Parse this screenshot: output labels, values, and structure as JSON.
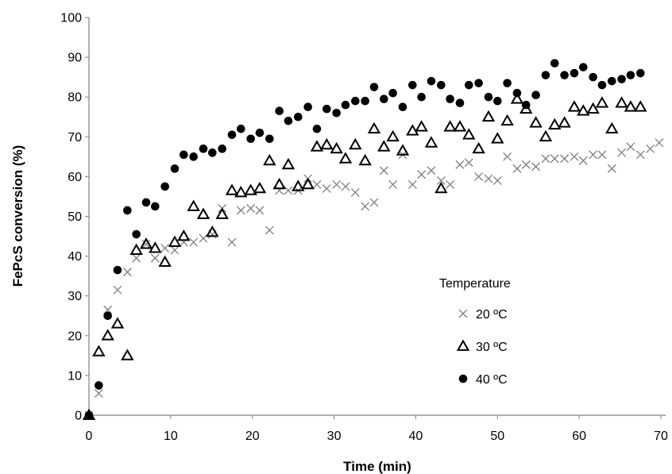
{
  "chart_data": {
    "type": "scatter",
    "title": "",
    "xlabel": "Time (min)",
    "ylabel": "FePcS conversion (%)",
    "xlim": [
      0,
      70
    ],
    "ylim": [
      0,
      100
    ],
    "xticks": [
      0,
      10,
      20,
      30,
      40,
      50,
      60,
      70
    ],
    "yticks": [
      0,
      10,
      20,
      30,
      40,
      50,
      60,
      70,
      80,
      90,
      100
    ],
    "grid": false,
    "legend": {
      "title": "Temperature",
      "position": "right-middle"
    },
    "series": [
      {
        "name": "20 ºC",
        "marker": "cross",
        "color": "#7f7f7f",
        "points": [
          [
            0,
            0
          ],
          [
            1.2,
            5.5
          ],
          [
            2.3,
            26.5
          ],
          [
            3.5,
            31.5
          ],
          [
            4.7,
            36
          ],
          [
            5.8,
            39.5
          ],
          [
            7,
            43
          ],
          [
            8.1,
            39.5
          ],
          [
            9.3,
            42
          ],
          [
            10.5,
            41.5
          ],
          [
            11.6,
            43.5
          ],
          [
            12.8,
            43.5
          ],
          [
            14,
            44.5
          ],
          [
            15.1,
            45.5
          ],
          [
            16.3,
            52
          ],
          [
            17.5,
            43.5
          ],
          [
            18.6,
            51.5
          ],
          [
            19.8,
            52
          ],
          [
            20.9,
            51.5
          ],
          [
            22.1,
            46.5
          ],
          [
            23.3,
            56.5
          ],
          [
            24.4,
            56.5
          ],
          [
            25.6,
            56.5
          ],
          [
            26.8,
            59.5
          ],
          [
            27.9,
            58
          ],
          [
            29.1,
            57
          ],
          [
            30.3,
            58
          ],
          [
            31.4,
            57.5
          ],
          [
            32.6,
            56
          ],
          [
            33.8,
            52.5
          ],
          [
            34.9,
            53.5
          ],
          [
            36.1,
            61.5
          ],
          [
            37.2,
            58
          ],
          [
            38.4,
            65.5
          ],
          [
            39.6,
            58
          ],
          [
            40.7,
            60.5
          ],
          [
            41.9,
            61.5
          ],
          [
            43.1,
            59
          ],
          [
            44.2,
            58
          ],
          [
            45.4,
            63
          ],
          [
            46.5,
            63.5
          ],
          [
            47.7,
            60
          ],
          [
            48.9,
            59.5
          ],
          [
            50,
            59
          ],
          [
            51.2,
            65
          ],
          [
            52.4,
            62
          ],
          [
            53.5,
            63
          ],
          [
            54.7,
            62.5
          ],
          [
            55.9,
            64.5
          ],
          [
            57,
            64.5
          ],
          [
            58.2,
            64.5
          ],
          [
            59.4,
            65
          ],
          [
            60.5,
            64
          ],
          [
            61.7,
            65.5
          ],
          [
            62.8,
            65.5
          ],
          [
            64,
            62
          ],
          [
            65.2,
            66
          ],
          [
            66.3,
            67.5
          ],
          [
            67.5,
            65.5
          ],
          [
            68.7,
            67
          ],
          [
            69.8,
            68.5
          ]
        ]
      },
      {
        "name": "30 ºC",
        "marker": "triangle",
        "color": "#000000",
        "points": [
          [
            0,
            0
          ],
          [
            1.2,
            16
          ],
          [
            2.3,
            20
          ],
          [
            3.5,
            23
          ],
          [
            4.7,
            15
          ],
          [
            5.8,
            41.5
          ],
          [
            7,
            43
          ],
          [
            8.1,
            42
          ],
          [
            9.3,
            38.5
          ],
          [
            10.5,
            43.5
          ],
          [
            11.6,
            45
          ],
          [
            12.8,
            52.5
          ],
          [
            14,
            50.5
          ],
          [
            15.1,
            46
          ],
          [
            16.3,
            50.5
          ],
          [
            17.5,
            56.5
          ],
          [
            18.6,
            56
          ],
          [
            19.8,
            56.5
          ],
          [
            20.9,
            57
          ],
          [
            22.1,
            64
          ],
          [
            23.3,
            58
          ],
          [
            24.4,
            63
          ],
          [
            25.6,
            57.5
          ],
          [
            26.8,
            58
          ],
          [
            27.9,
            67.5
          ],
          [
            29.1,
            68
          ],
          [
            30.3,
            67
          ],
          [
            31.4,
            64.5
          ],
          [
            32.6,
            68
          ],
          [
            33.8,
            64
          ],
          [
            34.9,
            72
          ],
          [
            36.1,
            67.5
          ],
          [
            37.2,
            70
          ],
          [
            38.4,
            66.5
          ],
          [
            39.6,
            71.5
          ],
          [
            40.7,
            72.5
          ],
          [
            41.9,
            68.5
          ],
          [
            43.1,
            57
          ],
          [
            44.2,
            72.5
          ],
          [
            45.4,
            72.5
          ],
          [
            46.5,
            70.5
          ],
          [
            47.7,
            67
          ],
          [
            48.9,
            75
          ],
          [
            50,
            69.5
          ],
          [
            51.2,
            74
          ],
          [
            52.4,
            79.5
          ],
          [
            53.5,
            77
          ],
          [
            54.7,
            73.5
          ],
          [
            55.9,
            70
          ],
          [
            57,
            73
          ],
          [
            58.2,
            73.5
          ],
          [
            59.4,
            77.5
          ],
          [
            60.5,
            76.5
          ],
          [
            61.7,
            77
          ],
          [
            62.8,
            78.5
          ],
          [
            64,
            72
          ],
          [
            65.2,
            78.5
          ],
          [
            66.3,
            77.5
          ],
          [
            67.5,
            77.5
          ]
        ]
      },
      {
        "name": "40 ºC",
        "marker": "circle",
        "color": "#000000",
        "points": [
          [
            0,
            0
          ],
          [
            1.2,
            7.5
          ],
          [
            2.3,
            25
          ],
          [
            3.5,
            36.5
          ],
          [
            4.7,
            51.5
          ],
          [
            5.8,
            45.5
          ],
          [
            7,
            53.5
          ],
          [
            8.1,
            52.5
          ],
          [
            9.3,
            57.5
          ],
          [
            10.5,
            62
          ],
          [
            11.6,
            65.5
          ],
          [
            12.8,
            65
          ],
          [
            14,
            67
          ],
          [
            15.1,
            66
          ],
          [
            16.3,
            67
          ],
          [
            17.5,
            70.5
          ],
          [
            18.6,
            72
          ],
          [
            19.8,
            69.5
          ],
          [
            20.9,
            71
          ],
          [
            22.1,
            69.5
          ],
          [
            23.3,
            76.5
          ],
          [
            24.4,
            74
          ],
          [
            25.6,
            75
          ],
          [
            26.8,
            77.5
          ],
          [
            27.9,
            72
          ],
          [
            29.1,
            77
          ],
          [
            30.3,
            76
          ],
          [
            31.4,
            78
          ],
          [
            32.6,
            79
          ],
          [
            33.8,
            79
          ],
          [
            34.9,
            82.5
          ],
          [
            36.1,
            79.5
          ],
          [
            37.2,
            81
          ],
          [
            38.4,
            77.5
          ],
          [
            39.6,
            83
          ],
          [
            40.7,
            80
          ],
          [
            41.9,
            84
          ],
          [
            43.1,
            83
          ],
          [
            44.2,
            79.5
          ],
          [
            45.4,
            78.5
          ],
          [
            46.5,
            83
          ],
          [
            47.7,
            83.5
          ],
          [
            48.9,
            80
          ],
          [
            50,
            79
          ],
          [
            51.2,
            83.5
          ],
          [
            52.4,
            81
          ],
          [
            53.5,
            78
          ],
          [
            54.7,
            80.5
          ],
          [
            55.9,
            85.5
          ],
          [
            57,
            88.5
          ],
          [
            58.2,
            85.5
          ],
          [
            59.4,
            86
          ],
          [
            60.5,
            87.5
          ],
          [
            61.7,
            85
          ],
          [
            62.8,
            83
          ],
          [
            64,
            84
          ],
          [
            65.2,
            84.5
          ],
          [
            66.3,
            85.5
          ],
          [
            67.5,
            86
          ]
        ]
      }
    ]
  }
}
